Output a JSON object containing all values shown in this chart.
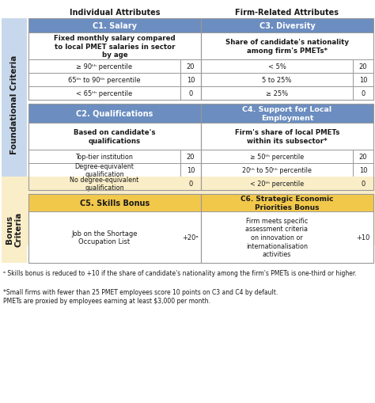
{
  "title_col1": "Individual Attributes",
  "title_col2": "Firm-Related Attributes",
  "foundational_label": "Foundational Criteria",
  "bonus_label": "Bonus\nCriteria",
  "c1_title": "C1. Salary",
  "c1_subtitle": "Fixed monthly salary compared\nto local PMET salaries in sector\nby age",
  "c1_rows": [
    [
      "≥ 90ᵗʰ percentile",
      "20"
    ],
    [
      "65ᵗʰ to 90ᵗʰ percentile",
      "10"
    ],
    [
      "< 65ᵗʰ percentile",
      "0"
    ]
  ],
  "c2_title": "C2. Qualifications",
  "c2_subtitle": "Based on candidate's\nqualifications",
  "c2_rows": [
    [
      "Top-tier institution",
      "20"
    ],
    [
      "Degree-equivalent\nqualification",
      "10"
    ],
    [
      "No degree-equivalent\nqualification",
      "0"
    ]
  ],
  "c3_title": "C3. Diversity",
  "c3_subtitle": "Share of candidate's nationality\namong firm's PMETs*",
  "c3_rows": [
    [
      "< 5%",
      "20"
    ],
    [
      "5 to 25%",
      "10"
    ],
    [
      "≥ 25%",
      "0"
    ]
  ],
  "c4_title": "C4. Support for Local\nEmployment",
  "c4_subtitle": "Firm's share of local PMETs\nwithin its subsector*",
  "c4_rows": [
    [
      "≥ 50ᵗʰ percentile",
      "20"
    ],
    [
      "20ᵗʰ to 50ᵗʰ percentile",
      "10"
    ],
    [
      "< 20ᵗʰ percentile",
      "0"
    ]
  ],
  "c5_title": "C5. Skills Bonus",
  "c5_row_desc": "Job on the Shortage\nOccupation List",
  "c5_row_score": "+20ᵃ",
  "c6_title": "C6. Strategic Economic\nPriorities Bonus",
  "c6_row_desc": "Firm meets specific\nassessment criteria\non innovation or\ninternationalisation\nactivities",
  "c6_row_score": "+10",
  "footnote1": "ᵃ Skills bonus is reduced to +10 if the share of candidate's nationality among the firm's PMETs is one-third or higher.",
  "footnote2": "*Small firms with fewer than 25 PMET employees score 10 points on C3 and C4 by default.\nPMETs are proxied by employees earning at least $3,000 per month.",
  "color_header_blue": "#6B8DC0",
  "color_bg_foundational": "#C8D8EC",
  "color_bg_bonus": "#FAEEC8",
  "color_header_yellow": "#F2C84B",
  "color_border": "#999999",
  "color_text_dark": "#1A1A1A",
  "color_text_white": "#FFFFFF"
}
